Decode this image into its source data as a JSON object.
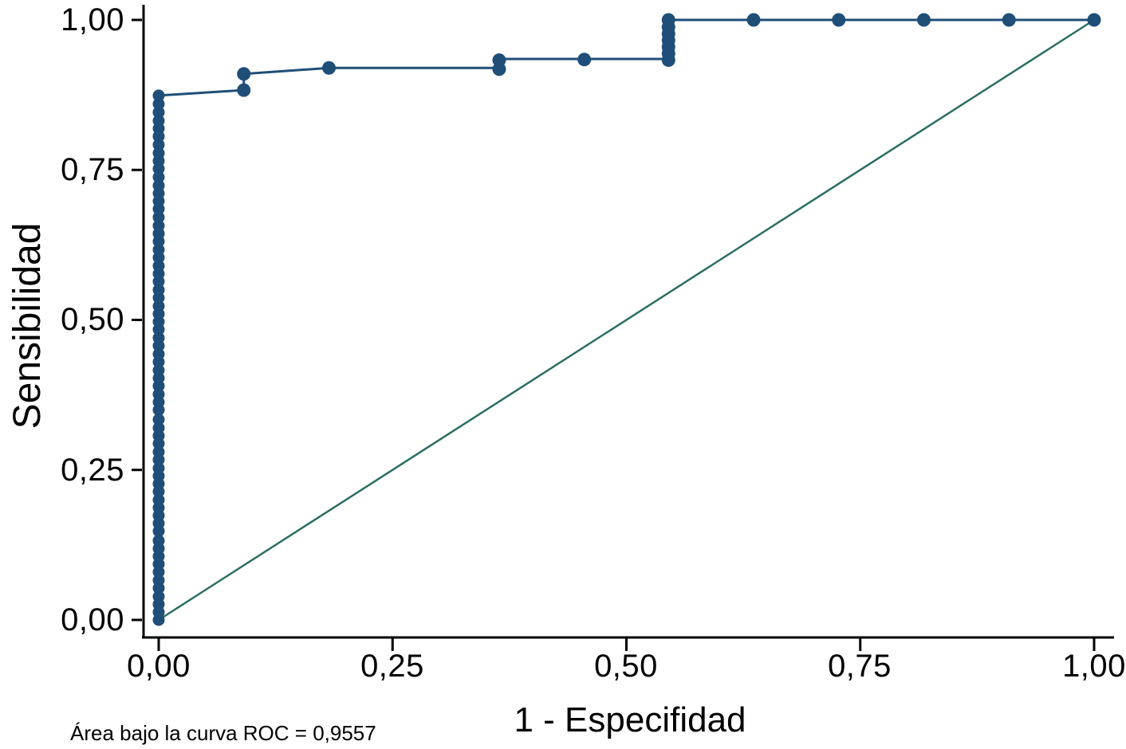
{
  "chart_data": {
    "type": "line",
    "title": "",
    "xlabel": "1 - Especifidad",
    "ylabel": "Sensibilidad",
    "annotation": "Área bajo la curva ROC = 0,9557",
    "auc_value": "0,9557",
    "xlim": [
      0,
      1
    ],
    "ylim": [
      0,
      1
    ],
    "grid": false,
    "legend": "none",
    "x_tick_values": [
      0,
      0.25,
      0.5,
      0.75,
      1
    ],
    "y_tick_values": [
      0,
      0.25,
      0.5,
      0.75,
      1
    ],
    "x_tick_labels": [
      "0,00",
      "0,25",
      "0,50",
      "0,75",
      "1,00"
    ],
    "y_tick_labels_top_down": [
      "1,00",
      "0,75",
      "0,50",
      "0,25",
      "0,00"
    ],
    "colors": {
      "curve": "#1f4e78",
      "reference": "#2c6e63",
      "axis": "#000000",
      "background": "#ffffff"
    },
    "reference_line": {
      "name": "diagonal",
      "path": [
        [
          0,
          0
        ],
        [
          1,
          1
        ]
      ]
    },
    "roc_curve": {
      "name": "ROC",
      "path": [
        [
          0,
          0
        ],
        [
          0,
          0.874
        ],
        [
          0.091,
          0.883
        ],
        [
          0.091,
          0.91
        ],
        [
          0.182,
          0.92
        ],
        [
          0.364,
          0.92
        ],
        [
          0.364,
          0.935
        ],
        [
          0.455,
          0.935
        ],
        [
          0.545,
          0.935
        ],
        [
          0.545,
          1.0
        ],
        [
          1.0,
          1.0
        ]
      ],
      "markers": [
        [
          0.091,
          0.883
        ],
        [
          0.091,
          0.91
        ],
        [
          0.182,
          0.92
        ],
        [
          0.364,
          0.918
        ],
        [
          0.364,
          0.933
        ],
        [
          0.455,
          0.934
        ],
        [
          0.545,
          0.933
        ],
        [
          0.545,
          0.944
        ],
        [
          0.545,
          0.955
        ],
        [
          0.545,
          0.966
        ],
        [
          0.545,
          0.977
        ],
        [
          0.545,
          0.988
        ],
        [
          0.545,
          1.0
        ],
        [
          0.636,
          1.0
        ],
        [
          0.727,
          1.0
        ],
        [
          0.818,
          1.0
        ],
        [
          0.909,
          1.0
        ],
        [
          1.0,
          1.0
        ]
      ],
      "column_x": 0,
      "column_marker_ys": [
        0.0,
        0.013,
        0.026,
        0.039,
        0.053,
        0.066,
        0.08,
        0.093,
        0.106,
        0.119,
        0.132,
        0.148,
        0.161,
        0.174,
        0.187,
        0.2,
        0.214,
        0.227,
        0.24,
        0.253,
        0.267,
        0.28,
        0.294,
        0.307,
        0.32,
        0.334,
        0.35,
        0.363,
        0.376,
        0.39,
        0.403,
        0.416,
        0.43,
        0.443,
        0.457,
        0.47,
        0.484,
        0.497,
        0.51,
        0.523,
        0.537,
        0.55,
        0.564,
        0.577,
        0.59,
        0.604,
        0.617,
        0.631,
        0.644,
        0.657,
        0.671,
        0.685,
        0.698,
        0.711,
        0.724,
        0.738,
        0.752,
        0.765,
        0.778,
        0.792,
        0.806,
        0.819,
        0.832,
        0.846,
        0.86,
        0.874
      ]
    }
  }
}
